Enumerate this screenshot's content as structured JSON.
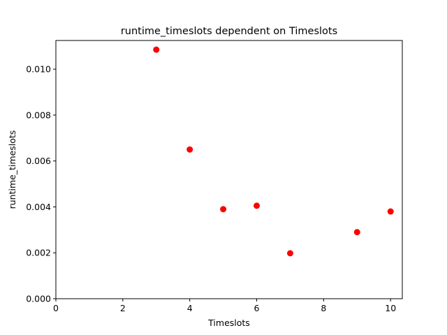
{
  "chart_data": {
    "type": "scatter",
    "title": "runtime_timeslots dependent on Timeslots",
    "xlabel": "Timeslots",
    "ylabel": "runtime_timeslots",
    "xlim": [
      0,
      10.35
    ],
    "ylim": [
      0,
      0.01125
    ],
    "xticks": [
      0,
      2,
      4,
      6,
      8,
      10
    ],
    "xtick_labels": [
      "0",
      "2",
      "4",
      "6",
      "8",
      "10"
    ],
    "yticks": [
      0,
      0.002,
      0.004,
      0.006,
      0.008,
      0.01
    ],
    "ytick_labels": [
      "0.000",
      "0.002",
      "0.004",
      "0.006",
      "0.008",
      "0.010"
    ],
    "grid": false,
    "marker_color": "#ff0000",
    "series": [
      {
        "x": [
          3,
          4,
          5,
          6,
          7,
          9,
          10
        ],
        "y": [
          0.01085,
          0.0065,
          0.0039,
          0.00405,
          0.00198,
          0.0029,
          0.0038
        ]
      }
    ]
  }
}
